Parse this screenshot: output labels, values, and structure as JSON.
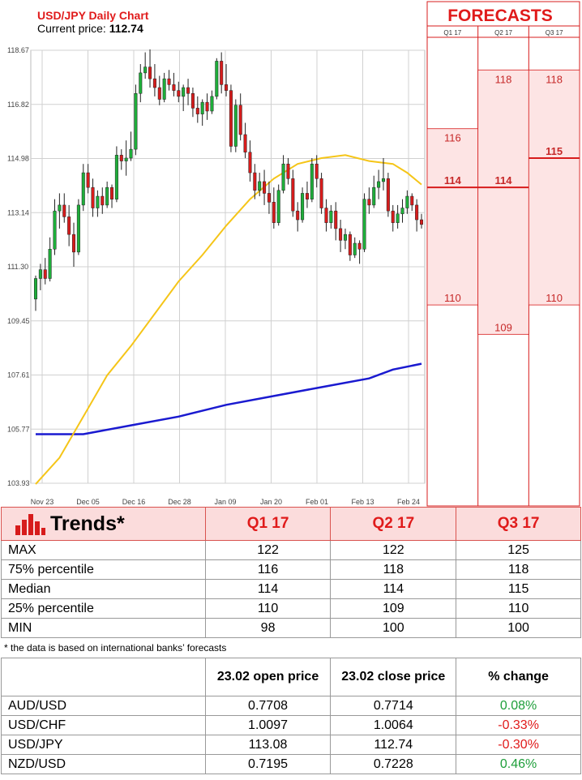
{
  "header": {
    "title": "USD/JPY Daily Chart",
    "price_label": "Current price: ",
    "price_value": "112.74"
  },
  "forecasts": {
    "title": "FORECASTS",
    "columns": [
      "Q1 17",
      "Q2 17",
      "Q3 17"
    ],
    "boxes": [
      {
        "quarter": "Q1 17",
        "high": 116,
        "median": 114,
        "low": 110
      },
      {
        "quarter": "Q2 17",
        "high": 118,
        "median": 114,
        "low": 109
      },
      {
        "quarter": "Q3 17",
        "high": 118,
        "median": 115,
        "low": 110
      }
    ]
  },
  "colors": {
    "bull": "#1eae3a",
    "bear": "#d71c1c",
    "ma_short": "#f5c518",
    "ma_long": "#1a1ad0",
    "forecast_fill": "#fde4e4",
    "forecast_line": "#d71c1c",
    "title_red": "#e01b1b"
  },
  "chart_data": {
    "type": "candlestick",
    "title": "USD/JPY Daily Chart",
    "y_ticks": [
      "118.67",
      "116.82",
      "114.98",
      "113.14",
      "111.30",
      "109.45",
      "107.61",
      "105.77",
      "103.93"
    ],
    "ylim": [
      103.93,
      118.67
    ],
    "x_ticks": [
      "Nov 23",
      "Dec 05",
      "Dec 16",
      "Dec 28",
      "Jan 09",
      "Jan 20",
      "Feb 01",
      "Feb 13",
      "Feb 24"
    ],
    "grid": true,
    "candles": [
      [
        110.2,
        111.0,
        109.8,
        110.9
      ],
      [
        110.9,
        111.4,
        110.5,
        111.2
      ],
      [
        111.2,
        111.6,
        110.7,
        110.9
      ],
      [
        110.9,
        112.3,
        110.8,
        111.9
      ],
      [
        111.9,
        113.6,
        111.7,
        113.2
      ],
      [
        113.2,
        113.8,
        112.6,
        113.4
      ],
      [
        113.4,
        113.8,
        112.8,
        113.0
      ],
      [
        113.0,
        113.4,
        112.0,
        112.4
      ],
      [
        112.4,
        112.8,
        111.3,
        111.8
      ],
      [
        111.8,
        113.6,
        111.7,
        113.4
      ],
      [
        113.4,
        114.8,
        113.2,
        114.5
      ],
      [
        114.5,
        114.8,
        113.8,
        114.0
      ],
      [
        114.0,
        114.3,
        113.0,
        113.3
      ],
      [
        113.3,
        113.9,
        113.0,
        113.7
      ],
      [
        113.7,
        114.0,
        113.1,
        113.4
      ],
      [
        113.4,
        114.2,
        113.3,
        114.0
      ],
      [
        114.0,
        114.1,
        113.3,
        113.6
      ],
      [
        113.6,
        115.4,
        113.5,
        115.1
      ],
      [
        115.1,
        115.3,
        114.6,
        114.9
      ],
      [
        114.9,
        115.6,
        114.4,
        115.0
      ],
      [
        115.0,
        115.9,
        114.9,
        115.3
      ],
      [
        115.3,
        117.5,
        115.1,
        117.2
      ],
      [
        117.2,
        118.2,
        116.9,
        117.9
      ],
      [
        117.9,
        118.6,
        117.7,
        118.1
      ],
      [
        118.1,
        118.7,
        117.4,
        117.7
      ],
      [
        117.7,
        118.2,
        117.1,
        117.4
      ],
      [
        117.4,
        117.8,
        116.8,
        117.0
      ],
      [
        117.0,
        117.9,
        116.9,
        117.7
      ],
      [
        117.7,
        118.0,
        117.3,
        117.5
      ],
      [
        117.5,
        117.9,
        117.1,
        117.3
      ],
      [
        117.3,
        117.6,
        116.9,
        117.1
      ],
      [
        117.1,
        117.5,
        116.6,
        117.4
      ],
      [
        117.4,
        117.7,
        116.8,
        117.2
      ],
      [
        117.2,
        117.4,
        116.4,
        116.7
      ],
      [
        116.7,
        117.1,
        116.2,
        116.5
      ],
      [
        116.5,
        117.0,
        116.1,
        116.9
      ],
      [
        116.9,
        117.2,
        116.3,
        116.6
      ],
      [
        116.6,
        117.3,
        116.5,
        117.1
      ],
      [
        117.1,
        118.4,
        117.0,
        118.3
      ],
      [
        118.3,
        118.6,
        117.2,
        117.5
      ],
      [
        117.5,
        118.2,
        117.1,
        117.3
      ],
      [
        117.3,
        117.5,
        115.2,
        115.4
      ],
      [
        115.4,
        117.0,
        115.2,
        116.8
      ],
      [
        116.8,
        117.2,
        115.6,
        115.8
      ],
      [
        115.8,
        116.2,
        115.0,
        115.2
      ],
      [
        115.2,
        115.6,
        114.2,
        114.5
      ],
      [
        114.5,
        114.8,
        113.6,
        113.9
      ],
      [
        113.9,
        114.5,
        113.7,
        114.2
      ],
      [
        114.2,
        114.6,
        113.4,
        113.8
      ],
      [
        113.8,
        114.2,
        113.1,
        113.5
      ],
      [
        113.5,
        114.0,
        112.6,
        112.8
      ],
      [
        112.8,
        114.1,
        112.7,
        113.9
      ],
      [
        113.9,
        115.1,
        113.8,
        114.8
      ],
      [
        114.8,
        115.0,
        114.1,
        114.3
      ],
      [
        114.3,
        114.6,
        113.0,
        113.2
      ],
      [
        113.2,
        113.5,
        112.5,
        112.9
      ],
      [
        112.9,
        114.0,
        112.8,
        113.8
      ],
      [
        113.8,
        114.2,
        113.3,
        113.6
      ],
      [
        113.6,
        115.0,
        113.5,
        114.8
      ],
      [
        114.8,
        115.1,
        114.0,
        114.3
      ],
      [
        114.3,
        114.5,
        113.1,
        113.3
      ],
      [
        113.3,
        113.6,
        112.5,
        112.8
      ],
      [
        112.8,
        113.4,
        112.6,
        113.2
      ],
      [
        113.2,
        113.5,
        112.2,
        112.6
      ],
      [
        112.6,
        112.9,
        111.8,
        112.2
      ],
      [
        112.2,
        112.6,
        111.9,
        112.4
      ],
      [
        112.4,
        112.5,
        111.5,
        111.7
      ],
      [
        111.7,
        112.3,
        111.6,
        112.1
      ],
      [
        112.1,
        112.2,
        111.4,
        111.9
      ],
      [
        111.9,
        113.8,
        111.8,
        113.6
      ],
      [
        113.6,
        114.0,
        113.1,
        113.4
      ],
      [
        113.4,
        114.4,
        113.3,
        114.0
      ],
      [
        114.0,
        114.6,
        113.6,
        114.2
      ],
      [
        114.2,
        115.0,
        113.9,
        114.3
      ],
      [
        114.3,
        114.5,
        113.0,
        113.2
      ],
      [
        113.2,
        113.4,
        112.5,
        112.8
      ],
      [
        112.8,
        113.4,
        112.6,
        113.1
      ],
      [
        113.1,
        113.6,
        112.8,
        113.3
      ],
      [
        113.3,
        113.9,
        113.1,
        113.7
      ],
      [
        113.7,
        113.8,
        113.2,
        113.4
      ],
      [
        113.4,
        113.6,
        112.5,
        112.9
      ],
      [
        112.9,
        113.1,
        112.6,
        112.74
      ]
    ],
    "ma_short": [
      [
        0,
        103.9
      ],
      [
        5,
        104.8
      ],
      [
        10,
        106.2
      ],
      [
        15,
        107.6
      ],
      [
        20,
        108.6
      ],
      [
        25,
        109.7
      ],
      [
        30,
        110.8
      ],
      [
        35,
        111.7
      ],
      [
        40,
        112.7
      ],
      [
        45,
        113.6
      ],
      [
        50,
        114.3
      ],
      [
        55,
        114.8
      ],
      [
        60,
        115.0
      ],
      [
        65,
        115.1
      ],
      [
        70,
        114.9
      ],
      [
        75,
        114.8
      ],
      [
        78,
        114.5
      ],
      [
        81,
        114.1
      ]
    ],
    "ma_long": [
      [
        0,
        105.6
      ],
      [
        10,
        105.6
      ],
      [
        20,
        105.9
      ],
      [
        30,
        106.2
      ],
      [
        40,
        106.6
      ],
      [
        50,
        106.9
      ],
      [
        60,
        107.2
      ],
      [
        70,
        107.5
      ],
      [
        75,
        107.8
      ],
      [
        81,
        108.0
      ]
    ]
  },
  "trends": {
    "title": "Trends*",
    "columns": [
      "Q1 17",
      "Q2 17",
      "Q3 17"
    ],
    "rows": [
      {
        "label": "MAX",
        "values": [
          "122",
          "122",
          "125"
        ]
      },
      {
        "label": "75% percentile",
        "values": [
          "116",
          "118",
          "118"
        ]
      },
      {
        "label": "Median",
        "values": [
          "114",
          "114",
          "115"
        ]
      },
      {
        "label": "25% percentile",
        "values": [
          "110",
          "109",
          "110"
        ]
      },
      {
        "label": "MIN",
        "values": [
          "98",
          "100",
          "100"
        ]
      }
    ],
    "footnote": "* the data is based on international banks’ forecasts"
  },
  "fx_table": {
    "headers": [
      "",
      "23.02 open price",
      "23.02 close price",
      "% change"
    ],
    "rows": [
      {
        "pair": "AUD/USD",
        "open": "0.7708",
        "close": "0.7714",
        "change": "0.08%",
        "dir": "pos"
      },
      {
        "pair": "USD/CHF",
        "open": "1.0097",
        "close": "1.0064",
        "change": "-0.33%",
        "dir": "neg"
      },
      {
        "pair": "USD/JPY",
        "open": "113.08",
        "close": "112.74",
        "change": "-0.30%",
        "dir": "neg"
      },
      {
        "pair": "NZD/USD",
        "open": "0.7195",
        "close": "0.7228",
        "change": "0.46%",
        "dir": "pos"
      }
    ]
  }
}
